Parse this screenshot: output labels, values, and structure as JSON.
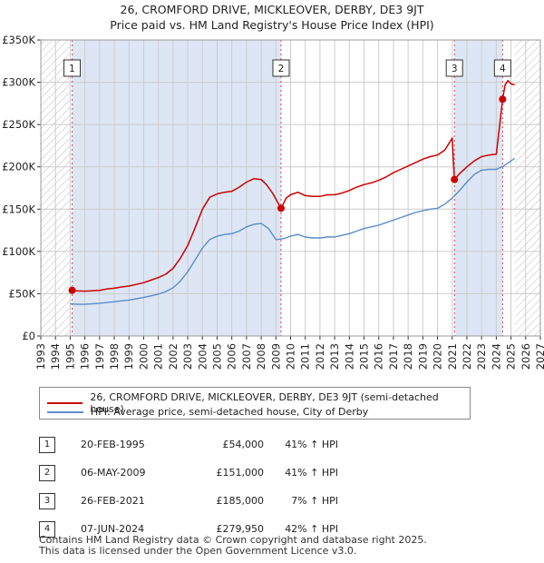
{
  "title_line1": "26, CROMFORD DRIVE, MICKLEOVER, DERBY, DE3 9JT",
  "title_line2": "Price paid vs. HM Land Registry's House Price Index (HPI)",
  "chart_data": {
    "type": "line",
    "title": "26, CROMFORD DRIVE, MICKLEOVER, DERBY, DE3 9JT",
    "subtitle": "Price paid vs. HM Land Registry's House Price Index (HPI)",
    "xlim": [
      1993,
      2027
    ],
    "ylim": [
      0,
      350000
    ],
    "y_ticks": [
      {
        "value": 0,
        "label": "£0"
      },
      {
        "value": 50000,
        "label": "£50K"
      },
      {
        "value": 100000,
        "label": "£100K"
      },
      {
        "value": 150000,
        "label": "£150K"
      },
      {
        "value": 200000,
        "label": "£200K"
      },
      {
        "value": 250000,
        "label": "£250K"
      },
      {
        "value": 300000,
        "label": "£300K"
      },
      {
        "value": 350000,
        "label": "£350K"
      }
    ],
    "x_ticks": [
      "1993",
      "1994",
      "1995",
      "1996",
      "1997",
      "1998",
      "1999",
      "2000",
      "2001",
      "2002",
      "2003",
      "2004",
      "2005",
      "2006",
      "2007",
      "2008",
      "2009",
      "2010",
      "2011",
      "2012",
      "2013",
      "2014",
      "2015",
      "2016",
      "2017",
      "2018",
      "2019",
      "2020",
      "2021",
      "2022",
      "2023",
      "2024",
      "2025",
      "2026",
      "2027"
    ],
    "grid": true,
    "colors": {
      "property": "#cc0000",
      "hpi": "#5b8cc8",
      "shade": "#dde6f5",
      "vline": "#dd4444"
    },
    "data_start": 1995.0,
    "data_end": 2025.25,
    "series": [
      {
        "name": "26, CROMFORD DRIVE, MICKLEOVER, DERBY, DE3 9JT (semi-detached house)",
        "key": "property",
        "points": [
          [
            1995.13,
            54000
          ],
          [
            1995.5,
            53200
          ],
          [
            1996.0,
            53000
          ],
          [
            1996.5,
            53500
          ],
          [
            1997.0,
            54000
          ],
          [
            1997.5,
            55500
          ],
          [
            1998.0,
            56500
          ],
          [
            1998.5,
            58000
          ],
          [
            1999.0,
            59000
          ],
          [
            1999.5,
            61000
          ],
          [
            2000.0,
            63000
          ],
          [
            2000.5,
            66000
          ],
          [
            2001.0,
            69000
          ],
          [
            2001.5,
            73000
          ],
          [
            2002.0,
            80000
          ],
          [
            2002.5,
            92000
          ],
          [
            2003.0,
            107000
          ],
          [
            2003.5,
            128000
          ],
          [
            2004.0,
            150000
          ],
          [
            2004.5,
            164000
          ],
          [
            2005.0,
            168000
          ],
          [
            2005.5,
            170000
          ],
          [
            2006.0,
            171000
          ],
          [
            2006.5,
            176000
          ],
          [
            2007.0,
            182000
          ],
          [
            2007.5,
            186000
          ],
          [
            2008.0,
            185000
          ],
          [
            2008.4,
            178000
          ],
          [
            2008.8,
            168000
          ],
          [
            2009.35,
            151000
          ],
          [
            2009.7,
            163000
          ],
          [
            2010.0,
            167000
          ],
          [
            2010.5,
            170000
          ],
          [
            2011.0,
            166000
          ],
          [
            2011.5,
            165000
          ],
          [
            2012.0,
            165000
          ],
          [
            2012.5,
            167000
          ],
          [
            2013.0,
            167000
          ],
          [
            2013.5,
            169000
          ],
          [
            2014.0,
            172000
          ],
          [
            2014.5,
            176000
          ],
          [
            2015.0,
            179000
          ],
          [
            2015.5,
            181000
          ],
          [
            2016.0,
            184000
          ],
          [
            2016.5,
            188000
          ],
          [
            2017.0,
            193000
          ],
          [
            2017.5,
            197000
          ],
          [
            2018.0,
            201000
          ],
          [
            2018.5,
            205000
          ],
          [
            2019.0,
            209000
          ],
          [
            2019.5,
            212000
          ],
          [
            2020.0,
            214000
          ],
          [
            2020.5,
            220000
          ],
          [
            2021.0,
            234000
          ],
          [
            2021.15,
            185000
          ],
          [
            2021.5,
            192000
          ],
          [
            2022.0,
            200000
          ],
          [
            2022.5,
            207000
          ],
          [
            2023.0,
            212000
          ],
          [
            2023.5,
            214000
          ],
          [
            2024.0,
            215000
          ],
          [
            2024.43,
            279950
          ],
          [
            2024.6,
            297000
          ],
          [
            2024.8,
            302000
          ],
          [
            2025.0,
            298000
          ],
          [
            2025.25,
            297000
          ]
        ]
      },
      {
        "name": "HPI: Average price, semi-detached house, City of Derby",
        "key": "hpi",
        "points": [
          [
            1995.0,
            38000
          ],
          [
            1995.5,
            37500
          ],
          [
            1996.0,
            37500
          ],
          [
            1996.5,
            38000
          ],
          [
            1997.0,
            38500
          ],
          [
            1997.5,
            39500
          ],
          [
            1998.0,
            40500
          ],
          [
            1998.5,
            41500
          ],
          [
            1999.0,
            42500
          ],
          [
            1999.5,
            44000
          ],
          [
            2000.0,
            45500
          ],
          [
            2000.5,
            47500
          ],
          [
            2001.0,
            49500
          ],
          [
            2001.5,
            52500
          ],
          [
            2002.0,
            57000
          ],
          [
            2002.5,
            65000
          ],
          [
            2003.0,
            76000
          ],
          [
            2003.5,
            90000
          ],
          [
            2004.0,
            104000
          ],
          [
            2004.5,
            114000
          ],
          [
            2005.0,
            118000
          ],
          [
            2005.5,
            120000
          ],
          [
            2006.0,
            121000
          ],
          [
            2006.5,
            124000
          ],
          [
            2007.0,
            129000
          ],
          [
            2007.5,
            132000
          ],
          [
            2008.0,
            133000
          ],
          [
            2008.5,
            127000
          ],
          [
            2009.0,
            114000
          ],
          [
            2009.5,
            115000
          ],
          [
            2010.0,
            118000
          ],
          [
            2010.5,
            120000
          ],
          [
            2011.0,
            117000
          ],
          [
            2011.5,
            116000
          ],
          [
            2012.0,
            116000
          ],
          [
            2012.5,
            117000
          ],
          [
            2013.0,
            117000
          ],
          [
            2013.5,
            119000
          ],
          [
            2014.0,
            121000
          ],
          [
            2014.5,
            124000
          ],
          [
            2015.0,
            127000
          ],
          [
            2015.5,
            129000
          ],
          [
            2016.0,
            131000
          ],
          [
            2016.5,
            134000
          ],
          [
            2017.0,
            137000
          ],
          [
            2017.5,
            140000
          ],
          [
            2018.0,
            143000
          ],
          [
            2018.5,
            146000
          ],
          [
            2019.0,
            148000
          ],
          [
            2019.5,
            150000
          ],
          [
            2020.0,
            151000
          ],
          [
            2020.5,
            156000
          ],
          [
            2021.0,
            163000
          ],
          [
            2021.5,
            172000
          ],
          [
            2022.0,
            182000
          ],
          [
            2022.5,
            191000
          ],
          [
            2023.0,
            196000
          ],
          [
            2023.5,
            197000
          ],
          [
            2024.0,
            197000
          ],
          [
            2024.5,
            201000
          ],
          [
            2025.0,
            207000
          ],
          [
            2025.25,
            210000
          ]
        ]
      }
    ],
    "sales": [
      {
        "num": "1",
        "date": "20-FEB-1995",
        "price": "£54,000",
        "hpi": "41% ↑ HPI",
        "x": 1995.13,
        "y": 54000
      },
      {
        "num": "2",
        "date": "06-MAY-2009",
        "price": "£151,000",
        "hpi": "41% ↑ HPI",
        "x": 2009.35,
        "y": 151000
      },
      {
        "num": "3",
        "date": "26-FEB-2021",
        "price": "£185,000",
        "hpi": "7% ↑ HPI",
        "x": 2021.15,
        "y": 185000
      },
      {
        "num": "4",
        "date": "07-JUN-2024",
        "price": "£279,950",
        "hpi": "42% ↑ HPI",
        "x": 2024.43,
        "y": 279950
      }
    ]
  },
  "legend": {
    "property_label": "26, CROMFORD DRIVE, MICKLEOVER, DERBY, DE3 9JT (semi-detached house)",
    "hpi_label": "HPI: Average price, semi-detached house, City of Derby"
  },
  "footer": {
    "line1": "Contains HM Land Registry data © Crown copyright and database right 2025.",
    "line2": "This data is licensed under the Open Government Licence v3.0."
  }
}
